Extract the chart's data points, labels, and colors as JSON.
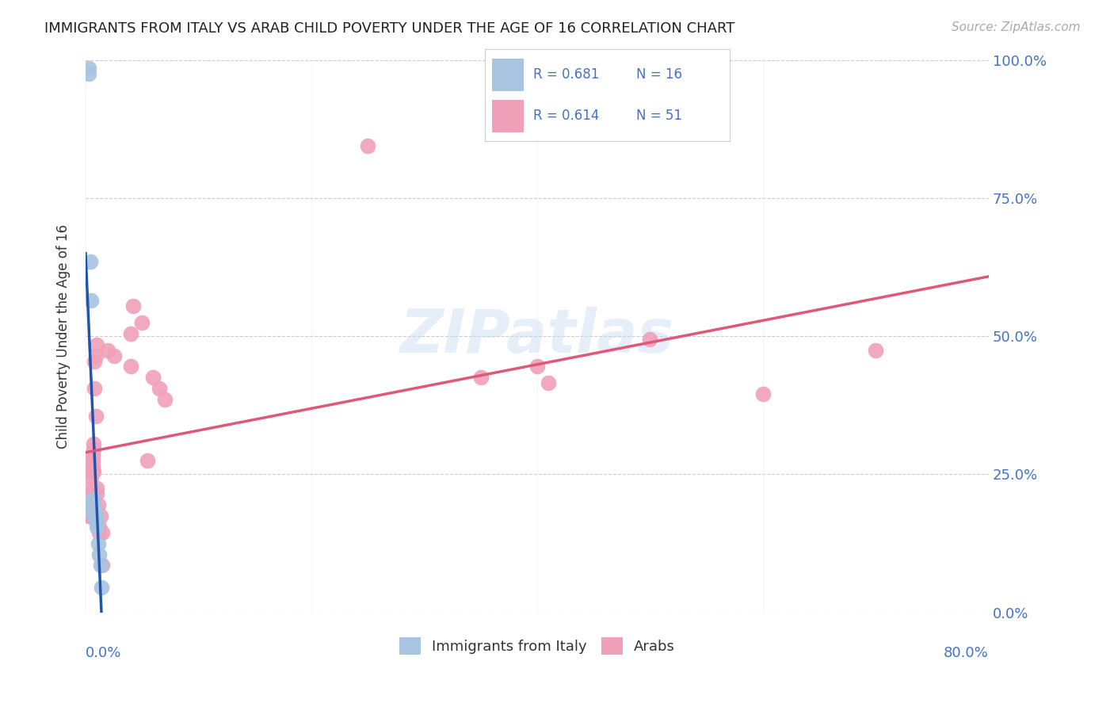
{
  "title": "IMMIGRANTS FROM ITALY VS ARAB CHILD POVERTY UNDER THE AGE OF 16 CORRELATION CHART",
  "source": "Source: ZipAtlas.com",
  "ylabel": "Child Poverty Under the Age of 16",
  "ytick_values": [
    0,
    0.25,
    0.5,
    0.75,
    1.0
  ],
  "xlim": [
    0,
    0.8
  ],
  "ylim": [
    0,
    1.0
  ],
  "italy_color": "#a8c4e0",
  "italy_line_color": "#2255aa",
  "arab_color": "#f0a0b8",
  "arab_line_color": "#e05878",
  "italy_scatter": [
    [
      0.001,
      0.195
    ],
    [
      0.002,
      0.185
    ],
    [
      0.003,
      0.975
    ],
    [
      0.003,
      0.985
    ],
    [
      0.004,
      0.635
    ],
    [
      0.005,
      0.565
    ],
    [
      0.006,
      0.205
    ],
    [
      0.007,
      0.195
    ],
    [
      0.008,
      0.185
    ],
    [
      0.009,
      0.175
    ],
    [
      0.009,
      0.165
    ],
    [
      0.01,
      0.155
    ],
    [
      0.011,
      0.125
    ],
    [
      0.012,
      0.105
    ],
    [
      0.013,
      0.085
    ],
    [
      0.014,
      0.045
    ]
  ],
  "arab_scatter": [
    [
      0.001,
      0.205
    ],
    [
      0.002,
      0.195
    ],
    [
      0.002,
      0.185
    ],
    [
      0.003,
      0.205
    ],
    [
      0.003,
      0.195
    ],
    [
      0.003,
      0.175
    ],
    [
      0.004,
      0.215
    ],
    [
      0.004,
      0.205
    ],
    [
      0.004,
      0.185
    ],
    [
      0.004,
      0.175
    ],
    [
      0.005,
      0.265
    ],
    [
      0.005,
      0.255
    ],
    [
      0.005,
      0.245
    ],
    [
      0.005,
      0.225
    ],
    [
      0.006,
      0.285
    ],
    [
      0.006,
      0.275
    ],
    [
      0.006,
      0.265
    ],
    [
      0.006,
      0.255
    ],
    [
      0.007,
      0.305
    ],
    [
      0.007,
      0.295
    ],
    [
      0.007,
      0.255
    ],
    [
      0.008,
      0.455
    ],
    [
      0.008,
      0.405
    ],
    [
      0.009,
      0.465
    ],
    [
      0.009,
      0.355
    ],
    [
      0.01,
      0.485
    ],
    [
      0.01,
      0.225
    ],
    [
      0.01,
      0.215
    ],
    [
      0.011,
      0.195
    ],
    [
      0.012,
      0.155
    ],
    [
      0.012,
      0.145
    ],
    [
      0.013,
      0.175
    ],
    [
      0.015,
      0.145
    ],
    [
      0.015,
      0.085
    ],
    [
      0.02,
      0.475
    ],
    [
      0.025,
      0.465
    ],
    [
      0.04,
      0.505
    ],
    [
      0.04,
      0.445
    ],
    [
      0.042,
      0.555
    ],
    [
      0.05,
      0.525
    ],
    [
      0.055,
      0.275
    ],
    [
      0.06,
      0.425
    ],
    [
      0.065,
      0.405
    ],
    [
      0.07,
      0.385
    ],
    [
      0.25,
      0.845
    ],
    [
      0.35,
      0.425
    ],
    [
      0.4,
      0.445
    ],
    [
      0.41,
      0.415
    ],
    [
      0.5,
      0.495
    ],
    [
      0.6,
      0.395
    ],
    [
      0.7,
      0.475
    ]
  ],
  "watermark": "ZIPatlas",
  "background_color": "#ffffff",
  "grid_color": "#cccccc",
  "italy_trend": [
    0.0,
    0.015
  ],
  "arab_trend": [
    0.0,
    0.8
  ]
}
